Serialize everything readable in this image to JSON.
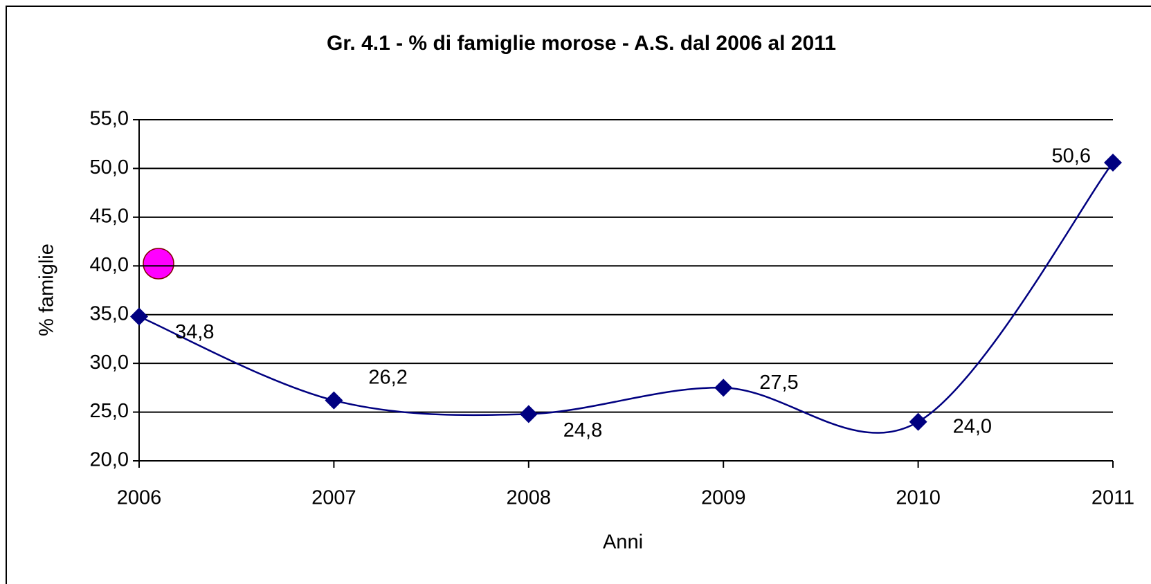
{
  "chart_data": {
    "type": "line",
    "title": "Gr. 4.1 - % di famiglie morose - A.S. dal 2006 al 2011",
    "x_label": "Anni",
    "y_label": "% famiglie",
    "x": [
      2006,
      2007,
      2008,
      2009,
      2010,
      2011
    ],
    "xlim": [
      2006,
      2011
    ],
    "xticks": [
      2006,
      2007,
      2008,
      2009,
      2010,
      2011
    ],
    "ylim": [
      20,
      55
    ],
    "yticks": [
      {
        "value": 20,
        "label": "20,0"
      },
      {
        "value": 25,
        "label": "25,0"
      },
      {
        "value": 30,
        "label": "30,0"
      },
      {
        "value": 35,
        "label": "35,0"
      },
      {
        "value": 40,
        "label": "40,0"
      },
      {
        "value": 45,
        "label": "45,0"
      },
      {
        "value": 50,
        "label": "50,0"
      },
      {
        "value": 55,
        "label": "55,0"
      }
    ],
    "grid": true,
    "smooth": true,
    "series": [
      {
        "color": "#000080",
        "values": [
          34.8,
          26.2,
          24.8,
          27.5,
          24.0,
          50.6
        ],
        "value_labels": [
          "34,8",
          "26,2",
          "24,8",
          "27,5",
          "24,0",
          "50,6"
        ]
      }
    ]
  }
}
